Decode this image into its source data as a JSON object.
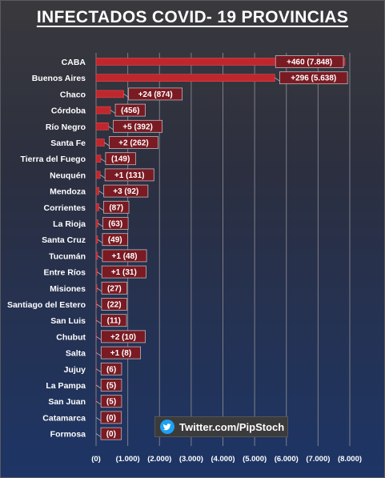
{
  "title": "INFECTADOS COVID- 19  PROVINCIAS",
  "badge": {
    "icon": "twitter-bird-icon",
    "text": "Twitter.com/PipStoch"
  },
  "colors": {
    "bar": "#c0272d",
    "label_bg": "#7a1a22",
    "grid": "#7f7f88"
  },
  "chart_data": {
    "type": "bar",
    "orientation": "horizontal",
    "xlim": [
      0,
      8000
    ],
    "x_tick_labels": [
      "(0)",
      "(1.000)",
      "(2.000)",
      "(3.000)",
      "(4.000)",
      "(5.000)",
      "(6.000)",
      "(7.000)",
      "(8.000)"
    ],
    "grid": true,
    "categories": [
      "CABA",
      "Buenos Aires",
      "Chaco",
      "Córdoba",
      "Río Negro",
      "Santa Fe",
      "Tierra del Fuego",
      "Neuquén",
      "Mendoza",
      "Corrientes",
      "La Rioja",
      "Santa Cruz",
      "Tucumán",
      "Entre Ríos",
      "Misiones",
      "Santiago del Estero",
      "San Luis",
      "Chubut",
      "Salta",
      "Jujuy",
      "La Pampa",
      "San Juan",
      "Catamarca",
      "Formosa"
    ],
    "values": [
      7848,
      5638,
      874,
      456,
      392,
      262,
      149,
      131,
      92,
      87,
      63,
      49,
      48,
      31,
      27,
      22,
      11,
      10,
      8,
      6,
      5,
      5,
      0,
      0
    ],
    "data_labels": [
      "+460  (7.848)",
      "+296  (5.638)",
      "+24  (874)",
      "(456)",
      "+5  (392)",
      "+2  (262)",
      "(149)",
      "+1  (131)",
      "+3  (92)",
      "(87)",
      "(63)",
      "(49)",
      "+1  (48)",
      "+1  (31)",
      "(27)",
      "(22)",
      "(11)",
      "+2  (10)",
      "+1  (8)",
      "(6)",
      "(5)",
      "(5)",
      "(0)",
      "(0)"
    ]
  }
}
